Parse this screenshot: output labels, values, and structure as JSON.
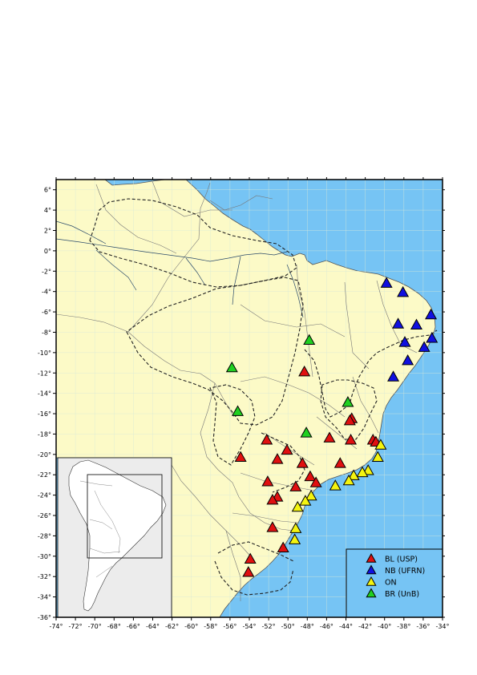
{
  "map": {
    "lon_range": [
      -74,
      -34
    ],
    "lat_range": [
      -36,
      7
    ],
    "colors": {
      "ocean": "#76c4f4",
      "land": "#fcfac7",
      "inset_ocean": "#ececec",
      "inset_land": "#ffffff",
      "border": "#777777",
      "river": "#2a4a6a",
      "craton": "#222222"
    },
    "x_ticks": [
      "-74°",
      "-72°",
      "-70°",
      "-68°",
      "-66°",
      "-64°",
      "-62°",
      "-60°",
      "-58°",
      "-56°",
      "-54°",
      "-52°",
      "-50°",
      "-48°",
      "-46°",
      "-44°",
      "-42°",
      "-40°",
      "-38°",
      "-36°",
      "-34°"
    ],
    "y_ticks": [
      "6°",
      "4°",
      "2°",
      "0°",
      "-2°",
      "-4°",
      "-6°",
      "-8°",
      "-10°",
      "-12°",
      "-14°",
      "-16°",
      "-18°",
      "-20°",
      "-22°",
      "-24°",
      "-26°",
      "-28°",
      "-30°",
      "-32°",
      "-34°",
      "-36°"
    ]
  },
  "legend": {
    "position": "bottom-right",
    "items": [
      {
        "label": "BL (USP)",
        "color": "#e01010"
      },
      {
        "label": "NB (UFRN)",
        "color": "#1010e0"
      },
      {
        "label": "ON",
        "color": "#f4f410"
      },
      {
        "label": "BR (UnB)",
        "color": "#20d020"
      }
    ]
  },
  "stations": [
    {
      "network": "NB (UFRN)",
      "lon": -39.8,
      "lat": -3.2
    },
    {
      "network": "NB (UFRN)",
      "lon": -38.1,
      "lat": -4.1
    },
    {
      "network": "NB (UFRN)",
      "lon": -35.2,
      "lat": -6.3
    },
    {
      "network": "NB (UFRN)",
      "lon": -38.6,
      "lat": -7.2
    },
    {
      "network": "NB (UFRN)",
      "lon": -36.7,
      "lat": -7.3
    },
    {
      "network": "NB (UFRN)",
      "lon": -37.9,
      "lat": -9.0
    },
    {
      "network": "NB (UFRN)",
      "lon": -35.9,
      "lat": -9.5
    },
    {
      "network": "NB (UFRN)",
      "lon": -35.1,
      "lat": -8.6
    },
    {
      "network": "NB (UFRN)",
      "lon": -37.6,
      "lat": -10.8
    },
    {
      "network": "NB (UFRN)",
      "lon": -39.1,
      "lat": -12.4
    },
    {
      "network": "BR (UnB)",
      "lon": -47.8,
      "lat": -8.8
    },
    {
      "network": "BR (UnB)",
      "lon": -55.8,
      "lat": -11.5
    },
    {
      "network": "BR (UnB)",
      "lon": -43.8,
      "lat": -14.9
    },
    {
      "network": "BR (UnB)",
      "lon": -55.2,
      "lat": -15.8
    },
    {
      "network": "BR (UnB)",
      "lon": -48.1,
      "lat": -17.9
    },
    {
      "network": "BL (USP)",
      "lon": -48.3,
      "lat": -11.9
    },
    {
      "network": "BL (USP)",
      "lon": -43.4,
      "lat": -16.5
    },
    {
      "network": "BL (USP)",
      "lon": -43.6,
      "lat": -16.7
    },
    {
      "network": "BL (USP)",
      "lon": -45.7,
      "lat": -18.4
    },
    {
      "network": "BL (USP)",
      "lon": -43.5,
      "lat": -18.6
    },
    {
      "network": "BL (USP)",
      "lon": -41.2,
      "lat": -18.6
    },
    {
      "network": "BL (USP)",
      "lon": -40.9,
      "lat": -18.8
    },
    {
      "network": "BL (USP)",
      "lon": -52.2,
      "lat": -18.6
    },
    {
      "network": "BL (USP)",
      "lon": -50.1,
      "lat": -19.6
    },
    {
      "network": "BL (USP)",
      "lon": -54.9,
      "lat": -20.3
    },
    {
      "network": "BL (USP)",
      "lon": -51.1,
      "lat": -20.5
    },
    {
      "network": "BL (USP)",
      "lon": -48.5,
      "lat": -20.9
    },
    {
      "network": "BL (USP)",
      "lon": -44.6,
      "lat": -20.9
    },
    {
      "network": "BL (USP)",
      "lon": -47.7,
      "lat": -22.2
    },
    {
      "network": "BL (USP)",
      "lon": -47.1,
      "lat": -22.8
    },
    {
      "network": "BL (USP)",
      "lon": -52.1,
      "lat": -22.7
    },
    {
      "network": "BL (USP)",
      "lon": -49.2,
      "lat": -23.2
    },
    {
      "network": "BL (USP)",
      "lon": -51.1,
      "lat": -24.2
    },
    {
      "network": "BL (USP)",
      "lon": -51.6,
      "lat": -24.5
    },
    {
      "network": "BL (USP)",
      "lon": -51.6,
      "lat": -27.2
    },
    {
      "network": "BL (USP)",
      "lon": -50.5,
      "lat": -29.2
    },
    {
      "network": "BL (USP)",
      "lon": -53.9,
      "lat": -30.3
    },
    {
      "network": "BL (USP)",
      "lon": -54.1,
      "lat": -31.6
    },
    {
      "network": "ON",
      "lon": -40.4,
      "lat": -19.1
    },
    {
      "network": "ON",
      "lon": -40.7,
      "lat": -20.3
    },
    {
      "network": "ON",
      "lon": -41.7,
      "lat": -21.6
    },
    {
      "network": "ON",
      "lon": -42.3,
      "lat": -21.8
    },
    {
      "network": "ON",
      "lon": -43.2,
      "lat": -22.1
    },
    {
      "network": "ON",
      "lon": -43.7,
      "lat": -22.6
    },
    {
      "network": "ON",
      "lon": -45.1,
      "lat": -23.1
    },
    {
      "network": "ON",
      "lon": -47.6,
      "lat": -24.1
    },
    {
      "network": "ON",
      "lon": -48.2,
      "lat": -24.6
    },
    {
      "network": "ON",
      "lon": -49.0,
      "lat": -25.2
    },
    {
      "network": "ON",
      "lon": -49.2,
      "lat": -27.3
    },
    {
      "network": "ON",
      "lon": -49.3,
      "lat": -28.4
    }
  ]
}
